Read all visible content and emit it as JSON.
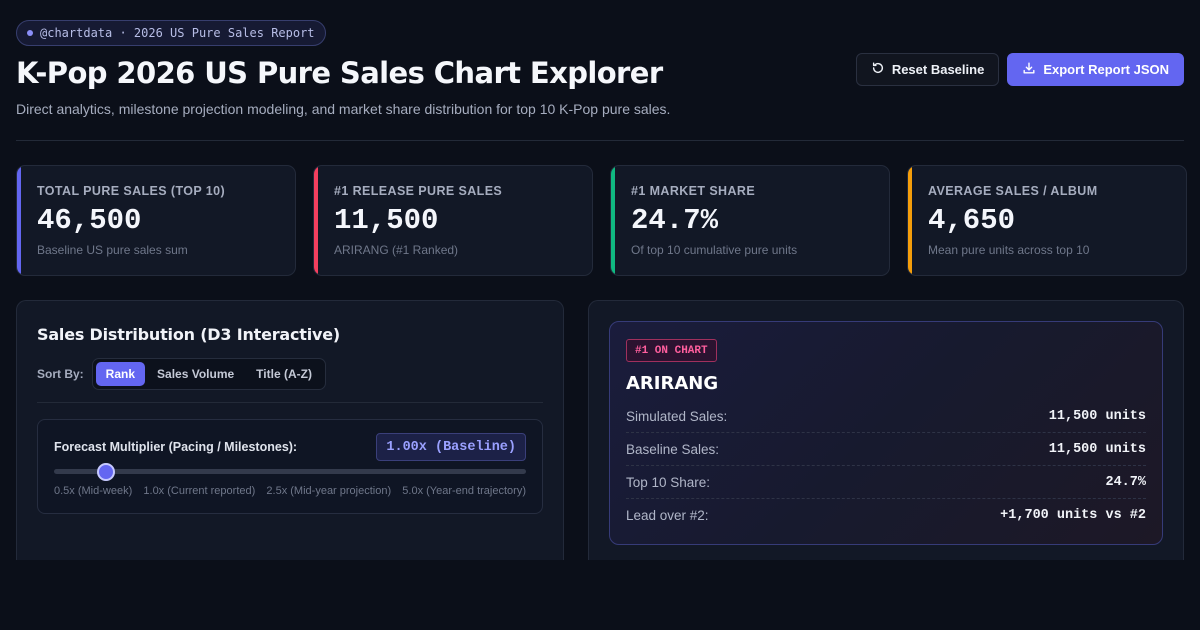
{
  "header": {
    "tag": "@chartdata · 2026 US Pure Sales Report",
    "title": "K-Pop 2026 US Pure Sales Chart Explorer",
    "subtitle": "Direct analytics, milestone projection modeling, and market share distribution for top 10 K-Pop pure sales.",
    "reset_label": "Reset Baseline",
    "export_label": "Export Report JSON"
  },
  "stats": [
    {
      "label": "TOTAL PURE SALES (TOP 10)",
      "value": "46,500",
      "sub": "Baseline US pure sales sum",
      "accent": "#6366f1"
    },
    {
      "label": "#1 RELEASE PURE SALES",
      "value": "11,500",
      "sub": "ARIRANG (#1 Ranked)",
      "accent": "#f43f5e"
    },
    {
      "label": "#1 MARKET SHARE",
      "value": "24.7%",
      "sub": "Of top 10 cumulative pure units",
      "accent": "#10b981"
    },
    {
      "label": "AVERAGE SALES / ALBUM",
      "value": "4,650",
      "sub": "Mean pure units across top 10",
      "accent": "#f59e0b"
    }
  ],
  "distribution": {
    "title": "Sales Distribution (D3 Interactive)",
    "sort_label": "Sort By:",
    "sort_options": [
      "Rank",
      "Sales Volume",
      "Title (A-Z)"
    ],
    "sort_active": "Rank",
    "forecast": {
      "label": "Forecast Multiplier (Pacing / Milestones):",
      "value_text": "1.00x (Baseline)",
      "min": 0.5,
      "max": 5.0,
      "value": 1.0,
      "ticks": [
        "0.5x (Mid-week)",
        "1.0x (Current reported)",
        "2.5x (Mid-year projection)",
        "5.0x (Year-end trajectory)"
      ]
    }
  },
  "top_release": {
    "badge": "#1 ON CHART",
    "title": "ARIRANG",
    "rows": [
      {
        "key": "Simulated Sales:",
        "value": "11,500 units"
      },
      {
        "key": "Baseline Sales:",
        "value": "11,500 units"
      },
      {
        "key": "Top 10 Share:",
        "value": "24.7%"
      },
      {
        "key": "Lead over #2:",
        "value": "+1,700 units vs #2"
      }
    ]
  },
  "colors": {
    "accent": "#6366f1",
    "background": "#0b0f19"
  },
  "icons": {
    "reset": "refresh-icon",
    "export": "download-icon"
  }
}
